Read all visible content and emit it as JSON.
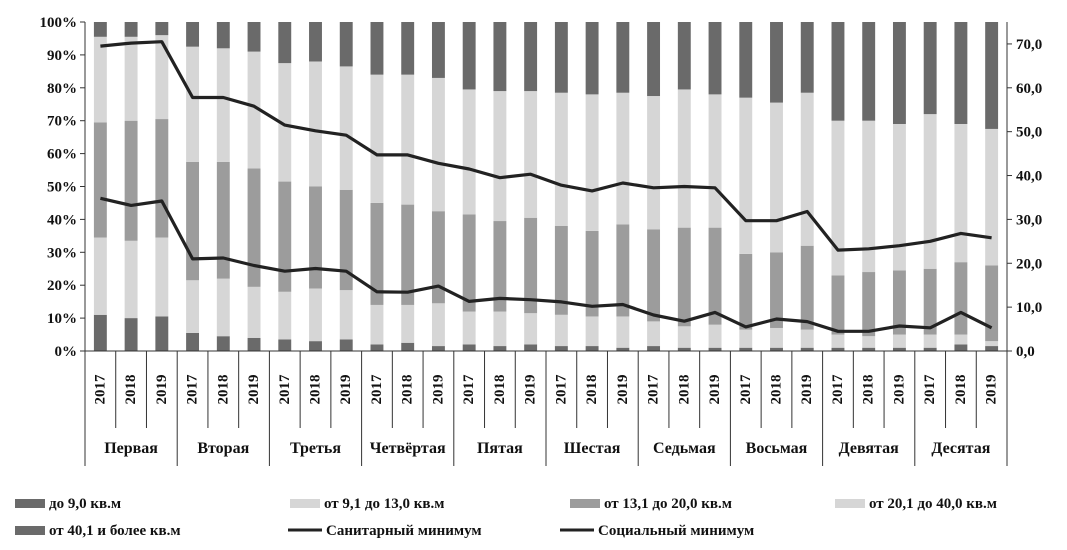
{
  "chart_data": {
    "type": "bar",
    "stacked": true,
    "percent": true,
    "groups": [
      "Первая",
      "Вторая",
      "Третья",
      "Четвёртая",
      "Пятая",
      "Шестая",
      "Седьмая",
      "Восьмая",
      "Девятая",
      "Десятая"
    ],
    "years": [
      "2017",
      "2018",
      "2019"
    ],
    "y_left_ticks": [
      "0%",
      "10%",
      "20%",
      "30%",
      "40%",
      "50%",
      "60%",
      "70%",
      "80%",
      "90%",
      "100%"
    ],
    "y_right_ticks": [
      "0,0",
      "10,0",
      "20,0",
      "30,0",
      "40,0",
      "50,0",
      "60,0",
      "70,0"
    ],
    "ylim_left": [
      0,
      100
    ],
    "ylim_right": [
      0,
      75
    ],
    "grid": false,
    "legend_position": "bottom",
    "series": [
      {
        "name": "до 9,0 кв.м",
        "color": "#6a6a6a",
        "values": [
          11,
          10,
          10.5,
          5.5,
          4.5,
          4,
          3.5,
          3,
          3.5,
          2,
          2.5,
          1.5,
          2,
          1.5,
          2,
          1.5,
          1.5,
          1,
          1.5,
          1,
          1,
          1,
          1,
          1,
          1,
          1,
          1,
          1,
          2,
          1.5
        ]
      },
      {
        "name": "от 9,1 до 13,0 кв.м",
        "color": "#d6d6d6",
        "values": [
          23.5,
          23.5,
          24,
          16,
          17.5,
          15.5,
          14.5,
          16,
          15,
          12,
          11.5,
          13,
          10,
          10.5,
          9.5,
          9.5,
          9,
          9.5,
          7.5,
          6.5,
          7,
          5.5,
          6,
          5.5,
          4,
          3.5,
          4,
          4,
          3,
          1.5
        ]
      },
      {
        "name": "от 13,1 до 20,0 кв.м",
        "color": "#9c9c9c",
        "values": [
          35,
          36.5,
          36,
          36,
          35.5,
          36,
          33.5,
          31,
          30.5,
          31,
          30.5,
          28,
          29.5,
          27.5,
          29,
          27,
          26,
          28,
          28,
          30,
          29.5,
          23,
          23,
          25.5,
          18,
          19.5,
          19.5,
          20,
          22,
          23
        ]
      },
      {
        "name": "от 20,1 до 40,0 кв.м",
        "color": "#d6d6d6",
        "values": [
          26,
          25.5,
          25.5,
          35,
          34.5,
          35.5,
          36,
          38,
          37.5,
          39,
          39.5,
          40.5,
          38,
          39.5,
          38.5,
          40.5,
          41.5,
          40,
          40.5,
          42,
          40.5,
          47.5,
          45.5,
          46.5,
          47,
          46,
          44.5,
          47,
          42,
          41.5
        ]
      },
      {
        "name": "от 40,1 и более кв.м",
        "color": "#6a6a6a",
        "values": [
          4.5,
          4.5,
          4,
          7.5,
          8,
          9,
          12.5,
          12,
          13.5,
          16,
          16,
          17,
          20.5,
          21,
          21,
          21.5,
          22,
          21.5,
          22.5,
          20.5,
          22,
          23,
          24.5,
          21.5,
          30,
          30,
          31,
          28,
          31,
          32.5
        ]
      }
    ],
    "lines": [
      {
        "name": "Санитарный минимум",
        "color": "#222222",
        "axis": "right",
        "values": [
          69.5,
          70.2,
          70.5,
          57.8,
          57.8,
          55.8,
          51.5,
          50.2,
          49.2,
          44.7,
          44.7,
          42.8,
          41.5,
          39.5,
          40.3,
          37.8,
          36.5,
          38.3,
          37.2,
          37.5,
          37.2,
          29.7,
          29.7,
          31.8,
          23.0,
          23.3,
          24.0,
          25.0,
          26.8,
          25.8
        ]
      },
      {
        "name": "Социальный минимум",
        "color": "#222222",
        "axis": "right",
        "values": [
          34.8,
          33.2,
          34.2,
          21.0,
          21.2,
          19.5,
          18.2,
          18.8,
          18.2,
          13.5,
          13.4,
          14.8,
          11.3,
          12.0,
          11.7,
          11.2,
          10.2,
          10.6,
          8.2,
          6.8,
          8.8,
          5.5,
          7.3,
          6.7,
          4.5,
          4.5,
          5.7,
          5.3,
          8.8,
          5.3
        ]
      }
    ]
  }
}
